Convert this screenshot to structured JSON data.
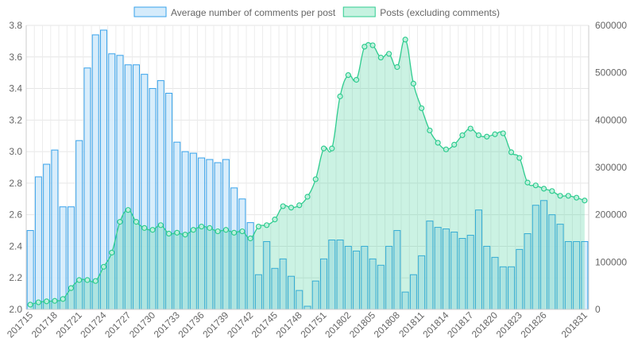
{
  "chart_data": {
    "type": "bar",
    "title": "",
    "legend_position": "top",
    "grid": true,
    "categories": [
      "201715",
      "201716",
      "201717",
      "201718",
      "201719",
      "201720",
      "201721",
      "201722",
      "201723",
      "201724",
      "201725",
      "201726",
      "201727",
      "201728",
      "201729",
      "201730",
      "201731",
      "201732",
      "201733",
      "201734",
      "201735",
      "201736",
      "201737",
      "201738",
      "201739",
      "201740",
      "201741",
      "201742",
      "201743",
      "201744",
      "201745",
      "201746",
      "201747",
      "201748",
      "201749",
      "201750",
      "201751",
      "201752",
      "201801",
      "201802",
      "201803",
      "201804",
      "201805",
      "201806",
      "201807",
      "201808",
      "201809",
      "201810",
      "201811",
      "201812",
      "201813",
      "201814",
      "201815",
      "201816",
      "201817",
      "201818",
      "201819",
      "201820",
      "201821",
      "201822",
      "201823",
      "201824",
      "201825",
      "201826",
      "201827",
      "201828",
      "201829",
      "201830",
      "201831"
    ],
    "x_tick_labels": [
      "201715",
      "201718",
      "201721",
      "201724",
      "201727",
      "201730",
      "201733",
      "201736",
      "201739",
      "201742",
      "201745",
      "201748",
      "201751",
      "201802",
      "201805",
      "201808",
      "201811",
      "201814",
      "201817",
      "201820",
      "201823",
      "201826",
      "201831"
    ],
    "y_left": {
      "min": 2.0,
      "max": 3.8,
      "ticks": [
        "2.0",
        "2.2",
        "2.4",
        "2.6",
        "2.8",
        "3.0",
        "3.2",
        "3.4",
        "3.6",
        "3.8"
      ]
    },
    "y_right": {
      "min": 0,
      "max": 600000,
      "ticks": [
        "0",
        "100000",
        "200000",
        "300000",
        "400000",
        "500000",
        "600000"
      ]
    },
    "series": [
      {
        "name": "Average number of comments per post",
        "kind": "bar",
        "axis": "left",
        "color": "#36a2eb",
        "fill": "#d4ebfb",
        "values": [
          2.5,
          2.84,
          2.92,
          3.01,
          2.65,
          2.65,
          3.07,
          3.53,
          3.74,
          3.77,
          3.62,
          3.61,
          3.55,
          3.55,
          3.49,
          3.4,
          3.45,
          3.37,
          3.06,
          3.0,
          2.99,
          2.96,
          2.95,
          2.93,
          2.95,
          2.77,
          2.7,
          2.55,
          2.22,
          2.43,
          2.26,
          2.32,
          2.21,
          2.12,
          2.02,
          2.18,
          2.32,
          2.44,
          2.44,
          2.4,
          2.37,
          2.4,
          2.32,
          2.28,
          2.4,
          2.5,
          2.11,
          2.22,
          2.34,
          2.56,
          2.52,
          2.51,
          2.49,
          2.45,
          2.47,
          2.63,
          2.4,
          2.33,
          2.27,
          2.27,
          2.38,
          2.48,
          2.66,
          2.69,
          2.6,
          2.54,
          2.43,
          2.43,
          2.43
        ]
      },
      {
        "name": "Posts (excluding comments)",
        "kind": "area",
        "axis": "right",
        "color": "#2ecc8f",
        "fill": "#c5f2e0",
        "values": [
          10000,
          15000,
          17000,
          18000,
          22000,
          45000,
          62000,
          62000,
          60000,
          90000,
          120000,
          185000,
          210000,
          185000,
          172000,
          168000,
          178000,
          160000,
          162000,
          158000,
          168000,
          175000,
          172000,
          165000,
          168000,
          162000,
          165000,
          150000,
          175000,
          178000,
          190000,
          218000,
          215000,
          220000,
          238000,
          275000,
          340000,
          340000,
          450000,
          495000,
          485000,
          555000,
          558000,
          532000,
          540000,
          512000,
          570000,
          477000,
          425000,
          378000,
          352000,
          338000,
          348000,
          368000,
          382000,
          368000,
          365000,
          370000,
          372000,
          332000,
          320000,
          268000,
          262000,
          255000,
          250000,
          240000,
          240000,
          236000,
          230000
        ]
      }
    ]
  }
}
